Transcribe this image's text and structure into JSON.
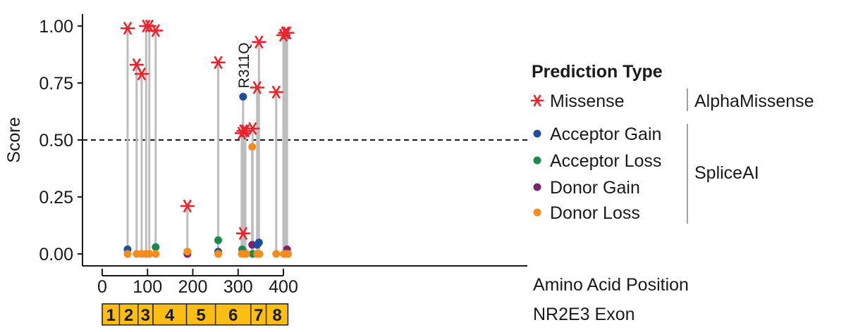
{
  "chart_data": {
    "type": "scatter",
    "subtype": "lollipop",
    "ylabel": "Score",
    "xlabel": "Amino Acid Position",
    "xlim": [
      0,
      435
    ],
    "ylim": [
      -0.05,
      1.05
    ],
    "x_ticks": [
      0,
      100,
      200,
      300,
      400
    ],
    "y_ticks": [
      0.0,
      0.25,
      0.5,
      0.75,
      1.0
    ],
    "y_tick_labels": [
      "0.00",
      "0.25",
      "0.50",
      "0.75",
      "1.00"
    ],
    "threshold": 0.5,
    "threshold_style": "dashed",
    "grid": false,
    "stem_color": "#bdbdbd",
    "annotation": {
      "text": "R311Q",
      "x": 311,
      "y": 0.69
    },
    "legend": {
      "title": "Prediction Type",
      "placement": "right",
      "groups": [
        {
          "label": "AlphaMissense",
          "entries": [
            "Missense"
          ]
        },
        {
          "label": "SpliceAI",
          "entries": [
            "Acceptor Gain",
            "Acceptor Loss",
            "Donor Gain",
            "Donor Loss"
          ]
        }
      ]
    },
    "series": [
      {
        "name": "Missense",
        "marker": "asterisk",
        "color": "#e8252e",
        "points": [
          [
            56,
            0.99
          ],
          [
            76,
            0.83
          ],
          [
            87,
            0.79
          ],
          [
            97,
            1.0
          ],
          [
            104,
            1.0
          ],
          [
            118,
            0.98
          ],
          [
            188,
            0.21
          ],
          [
            256,
            0.84
          ],
          [
            308,
            0.53
          ],
          [
            311,
            0.09
          ],
          [
            312,
            0.54
          ],
          [
            316,
            0.54
          ],
          [
            332,
            0.55
          ],
          [
            342,
            0.73
          ],
          [
            346,
            0.93
          ],
          [
            384,
            0.71
          ],
          [
            400,
            0.96
          ],
          [
            404,
            0.97
          ],
          [
            408,
            0.97
          ]
        ]
      },
      {
        "name": "Acceptor Gain",
        "marker": "circle",
        "color": "#1f4e9e",
        "points": [
          [
            56,
            0.02
          ],
          [
            256,
            0.01
          ],
          [
            311,
            0.69
          ],
          [
            342,
            0.04
          ],
          [
            346,
            0.05
          ]
        ]
      },
      {
        "name": "Acceptor Loss",
        "marker": "circle",
        "color": "#1a8a4c",
        "points": [
          [
            118,
            0.03
          ],
          [
            256,
            0.06
          ],
          [
            309,
            0.02
          ],
          [
            312,
            0.01
          ],
          [
            332,
            0.0
          ]
        ]
      },
      {
        "name": "Donor Gain",
        "marker": "circle",
        "color": "#7b2270",
        "points": [
          [
            188,
            0.0
          ],
          [
            331,
            0.04
          ],
          [
            408,
            0.02
          ]
        ]
      },
      {
        "name": "Donor Loss",
        "marker": "circle",
        "color": "#f38d20",
        "points": [
          [
            56,
            0.0
          ],
          [
            76,
            0.0
          ],
          [
            87,
            0.0
          ],
          [
            97,
            0.0
          ],
          [
            104,
            0.0
          ],
          [
            118,
            0.0
          ],
          [
            188,
            0.01
          ],
          [
            256,
            0.0
          ],
          [
            308,
            0.0
          ],
          [
            314,
            0.0
          ],
          [
            318,
            0.0
          ],
          [
            331,
            0.47
          ],
          [
            342,
            0.0
          ],
          [
            347,
            0.0
          ],
          [
            384,
            0.0
          ],
          [
            401,
            0.0
          ],
          [
            404,
            0.0
          ],
          [
            410,
            0.0
          ]
        ]
      }
    ],
    "exon_track": {
      "label": "NR2E3 Exon",
      "color": "#fbbf14",
      "exons": [
        {
          "label": "1",
          "start": 0,
          "end": 38
        },
        {
          "label": "2",
          "start": 38,
          "end": 79
        },
        {
          "label": "3",
          "start": 79,
          "end": 112
        },
        {
          "label": "4",
          "start": 112,
          "end": 186
        },
        {
          "label": "5",
          "start": 186,
          "end": 250
        },
        {
          "label": "6",
          "start": 250,
          "end": 328
        },
        {
          "label": "7",
          "start": 328,
          "end": 362
        },
        {
          "label": "8",
          "start": 362,
          "end": 410
        }
      ]
    }
  }
}
